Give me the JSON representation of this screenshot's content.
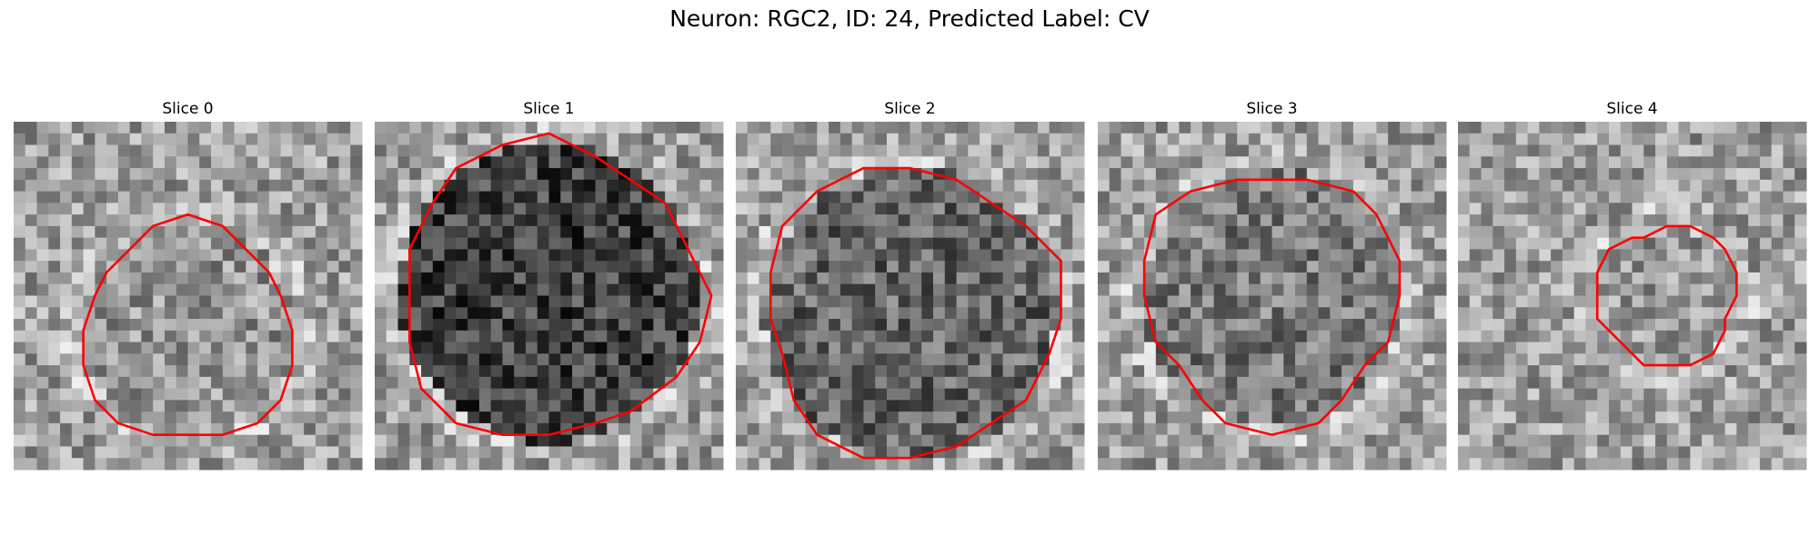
{
  "title": "Neuron: RGC2, ID: 24, Predicted Label: CV",
  "panels": [
    {
      "title": "Slice 0"
    },
    {
      "title": "Slice 1"
    },
    {
      "title": "Slice 2"
    },
    {
      "title": "Slice 3"
    },
    {
      "title": "Slice 4"
    }
  ]
}
